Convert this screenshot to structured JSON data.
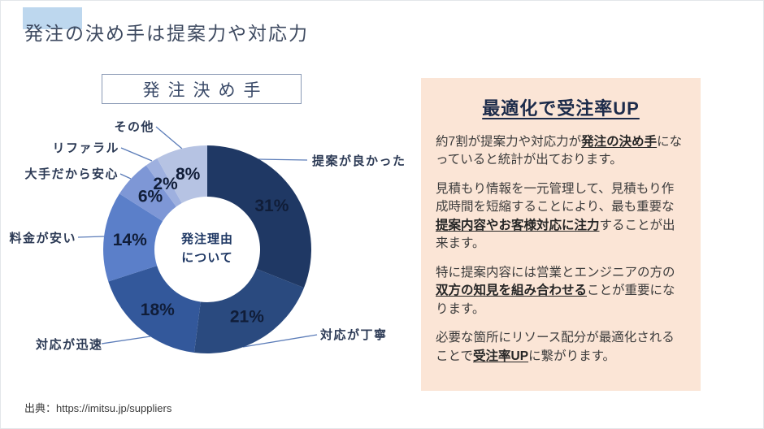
{
  "slide": {
    "title": "発注の決め手は提案力や対応力",
    "source": "出典：https://imitsu.jp/suppliers"
  },
  "chart_header": {
    "label": "発注決め手"
  },
  "chart_data": {
    "type": "pie",
    "subtype": "donut",
    "title": "発注決め手",
    "center_label": "発注理由\nについて",
    "unit": "%",
    "start_angle": "12-o-clock",
    "direction": "clockwise",
    "segments": [
      {
        "label": "提案が良かった",
        "value": 31,
        "color": "#1F3864"
      },
      {
        "label": "対応が丁寧",
        "value": 21,
        "color": "#2A4A7F"
      },
      {
        "label": "対応が迅速",
        "value": 18,
        "color": "#33589B"
      },
      {
        "label": "料金が安い",
        "value": 14,
        "color": "#5B7FC9"
      },
      {
        "label": "大手だから安心",
        "value": 6,
        "color": "#7E97D6"
      },
      {
        "label": "リファラル",
        "value": 2,
        "color": "#9EB0DF"
      },
      {
        "label": "その他",
        "value": 8,
        "color": "#B6C3E3"
      }
    ],
    "percent_label_color": "#101D38",
    "leader_line_color": "#5B7CB8"
  },
  "panel": {
    "title": "最適化で受注率UP",
    "bg_color": "#FBE5D6",
    "paragraphs": [
      [
        {
          "text": "約7割が提案力や対応力が"
        },
        {
          "text": "発注の決め手",
          "strong": true
        },
        {
          "text": "になっていると統計が出ております。"
        }
      ],
      [
        {
          "text": "見積もり情報を一元管理して、見積もり作成時間を短縮することにより、最も重要な"
        },
        {
          "text": "提案内容やお客様対応に注力",
          "strong": true
        },
        {
          "text": "することが出来ます。"
        }
      ],
      [
        {
          "text": "特に提案内容には営業とエンジニアの方の"
        },
        {
          "text": "双方の知見を組み合わせる",
          "strong": true
        },
        {
          "text": "ことが重要になります。"
        }
      ],
      [
        {
          "text": "必要な箇所にリソース配分が最適化されることで"
        },
        {
          "text": "受注率UP",
          "strong": true
        },
        {
          "text": "に繋がります。"
        }
      ]
    ]
  },
  "decor": {
    "title_highlight_color": "#BDD7EE"
  }
}
